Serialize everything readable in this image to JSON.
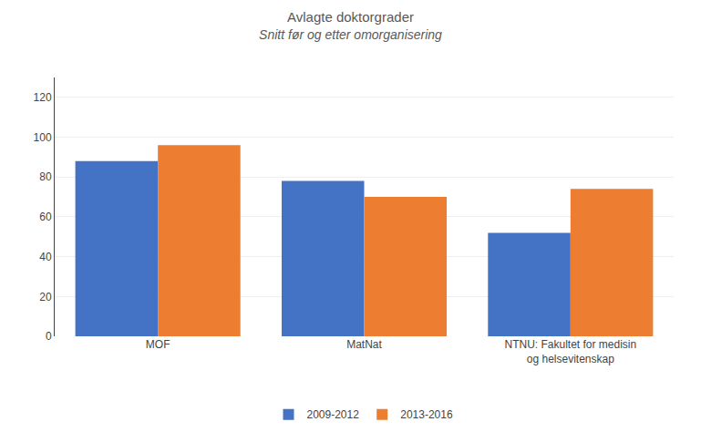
{
  "chart_data": {
    "type": "bar",
    "title": "Avlagte doktorgrader",
    "subtitle": "Snitt før og etter omorganisering",
    "categories": [
      "MOF",
      "MatNat",
      "NTNU: Fakultet for medisin\nog helsevitenskap"
    ],
    "series": [
      {
        "name": "2009-2012",
        "color": "#4472C4",
        "values": [
          88,
          78,
          52
        ]
      },
      {
        "name": "2013-2016",
        "color": "#ED7D31",
        "values": [
          96,
          70,
          74
        ]
      }
    ],
    "ylim": [
      0,
      130
    ],
    "yticks": [
      0,
      20,
      40,
      60,
      80,
      100,
      120
    ],
    "grid": true,
    "legend": "bottom"
  }
}
